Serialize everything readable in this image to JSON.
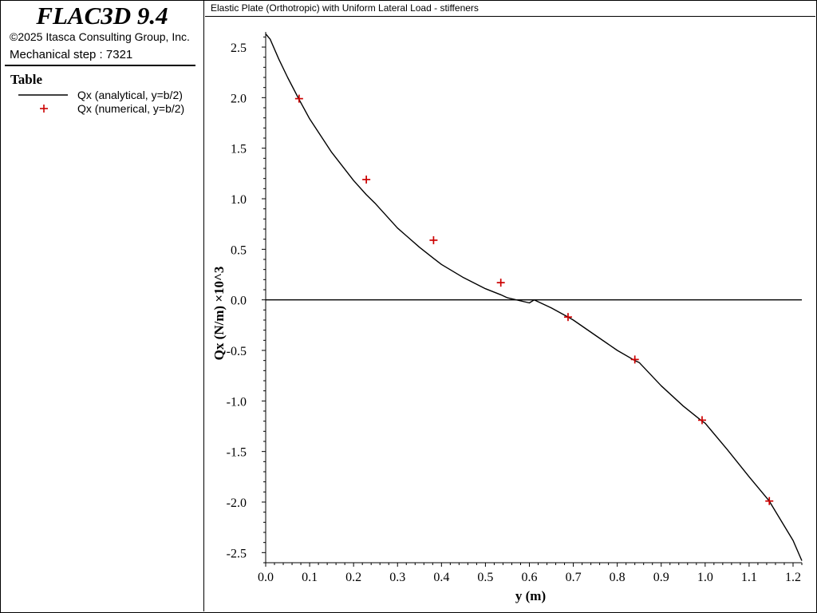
{
  "sidebar": {
    "app_title": "FLAC3D 9.4",
    "copyright": "©2025 Itasca Consulting Group, Inc.",
    "step": "Mechanical step : 7321",
    "table_heading": "Table",
    "legend": [
      {
        "label": "Qx (analytical, y=b/2)",
        "symbol": "line",
        "color": "#000000"
      },
      {
        "label": "Qx (numerical, y=b/2)",
        "symbol": "plus",
        "color": "#cc0000"
      }
    ]
  },
  "plot_title": "Elastic Plate (Orthotropic) with Uniform Lateral Load - stiffeners",
  "chart_data": {
    "type": "line",
    "xlabel": "y (m)",
    "ylabel": "Qx (N/m) ×10^3",
    "xlim": [
      0.0,
      1.22
    ],
    "ylim": [
      -2.6,
      2.65
    ],
    "x_ticks": [
      "0.0",
      "0.1",
      "0.2",
      "0.3",
      "0.4",
      "0.5",
      "0.6",
      "0.7",
      "0.8",
      "0.9",
      "1.0",
      "1.1",
      "1.2"
    ],
    "y_ticks": [
      "2.5",
      "2.0",
      "1.5",
      "1.0",
      "0.5",
      "0.0",
      "-0.5",
      "-1.0",
      "-1.5",
      "-2.0",
      "-2.5"
    ],
    "grid": false,
    "legend_placement": "sidebar",
    "series": [
      {
        "name": "Qx (analytical, y=b/2)",
        "style": "line",
        "color": "#000000",
        "x": [
          0.0,
          0.01,
          0.03,
          0.05,
          0.075,
          0.1,
          0.15,
          0.2,
          0.229,
          0.25,
          0.3,
          0.35,
          0.382,
          0.4,
          0.45,
          0.5,
          0.535,
          0.55,
          0.6,
          0.611,
          0.65,
          0.688,
          0.7,
          0.75,
          0.8,
          0.84,
          0.85,
          0.9,
          0.95,
          0.993,
          1.0,
          1.05,
          1.1,
          1.146,
          1.15,
          1.2,
          1.22
        ],
        "y": [
          2.63,
          2.58,
          2.38,
          2.2,
          1.99,
          1.79,
          1.46,
          1.18,
          1.04,
          0.95,
          0.71,
          0.52,
          0.41,
          0.35,
          0.22,
          0.11,
          0.05,
          0.02,
          -0.03,
          0.0,
          -0.08,
          -0.17,
          -0.2,
          -0.35,
          -0.5,
          -0.6,
          -0.62,
          -0.85,
          -1.05,
          -1.2,
          -1.22,
          -1.48,
          -1.75,
          -1.99,
          -2.02,
          -2.38,
          -2.58
        ]
      },
      {
        "name": "Qx (numerical, y=b/2)",
        "style": "plus",
        "color": "#cc0000",
        "x": [
          0.076,
          0.229,
          0.382,
          0.535,
          0.688,
          0.84,
          0.993,
          1.146
        ],
        "y": [
          1.99,
          1.19,
          0.59,
          0.17,
          -0.17,
          -0.59,
          -1.19,
          -1.99
        ]
      }
    ]
  }
}
